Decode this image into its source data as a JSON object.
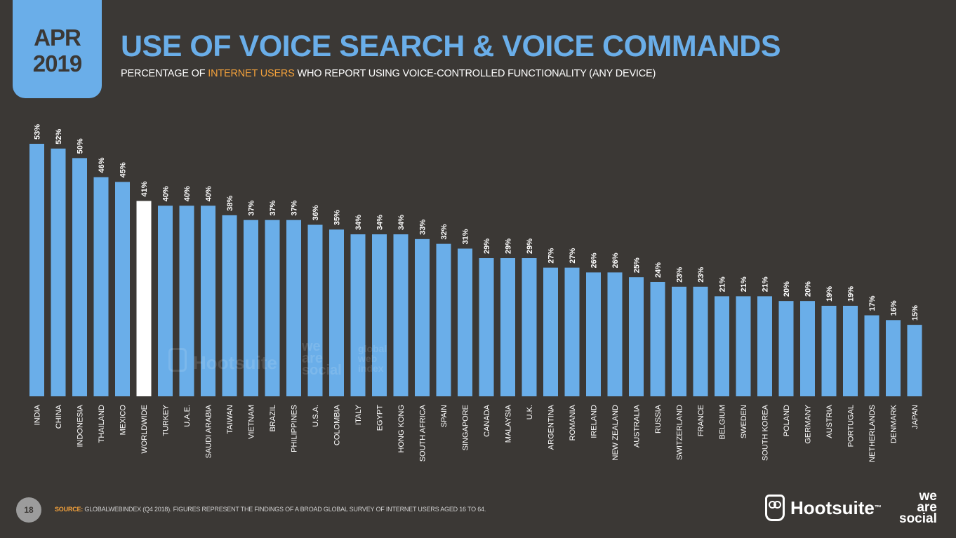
{
  "badge": {
    "month": "APR",
    "year": "2019"
  },
  "title": "USE OF VOICE SEARCH & VOICE COMMANDS",
  "subtitle": {
    "before": "PERCENTAGE OF ",
    "highlight": "INTERNET USERS",
    "after": " WHO REPORT USING VOICE-CONTROLLED FUNCTIONALITY (ANY DEVICE)"
  },
  "colors": {
    "background": "#3b3835",
    "accent": "#6aaee9",
    "highlight_bar": "#ffffff",
    "orange": "#f3a13b"
  },
  "watermark": {
    "hootsuite": "Hootsuite",
    "we": "we",
    "are": "are",
    "social": "social",
    "gwi_global": "global",
    "gwi_web": "web",
    "gwi_index": "index"
  },
  "chart_data": {
    "type": "bar",
    "title": "USE OF VOICE SEARCH & VOICE COMMANDS",
    "xlabel": "",
    "ylabel": "",
    "ylim": [
      0,
      53
    ],
    "value_suffix": "%",
    "highlight_category": "WORLDWIDE",
    "categories": [
      "INDIA",
      "CHINA",
      "INDONESIA",
      "THAILAND",
      "MEXICO",
      "WORLDWIDE",
      "TURKEY",
      "U.A.E.",
      "SAUDI ARABIA",
      "TAIWAN",
      "VIETNAM",
      "BRAZIL",
      "PHILIPPINES",
      "U.S.A.",
      "COLOMBIA",
      "ITALY",
      "EGYPT",
      "HONG KONG",
      "SOUTH AFRICA",
      "SPAIN",
      "SINGAPORE",
      "CANADA",
      "MALAYSIA",
      "U.K.",
      "ARGENTINA",
      "ROMANIA",
      "IRELAND",
      "NEW ZEALAND",
      "AUSTRALIA",
      "RUSSIA",
      "SWITZERLAND",
      "FRANCE",
      "BELGIUM",
      "SWEDEN",
      "SOUTH KOREA",
      "POLAND",
      "GERMANY",
      "AUSTRIA",
      "PORTUGAL",
      "NETHERLANDS",
      "DENMARK",
      "JAPAN"
    ],
    "values": [
      53,
      52,
      50,
      46,
      45,
      41,
      40,
      40,
      40,
      38,
      37,
      37,
      37,
      36,
      35,
      34,
      34,
      34,
      33,
      32,
      31,
      29,
      29,
      29,
      27,
      27,
      26,
      26,
      25,
      24,
      23,
      23,
      21,
      21,
      21,
      20,
      20,
      19,
      19,
      17,
      16,
      15
    ]
  },
  "footer": {
    "page_number": "18",
    "source_label": "SOURCE:",
    "source_text": " GLOBALWEBINDEX (Q4 2018). FIGURES REPRESENT THE FINDINGS OF A BROAD GLOBAL SURVEY OF INTERNET USERS AGED 16 TO 64.",
    "logo_hootsuite": "Hootsuite",
    "logo_trademark": "™",
    "logo_we": "we",
    "logo_are": "are",
    "logo_social": "social"
  }
}
